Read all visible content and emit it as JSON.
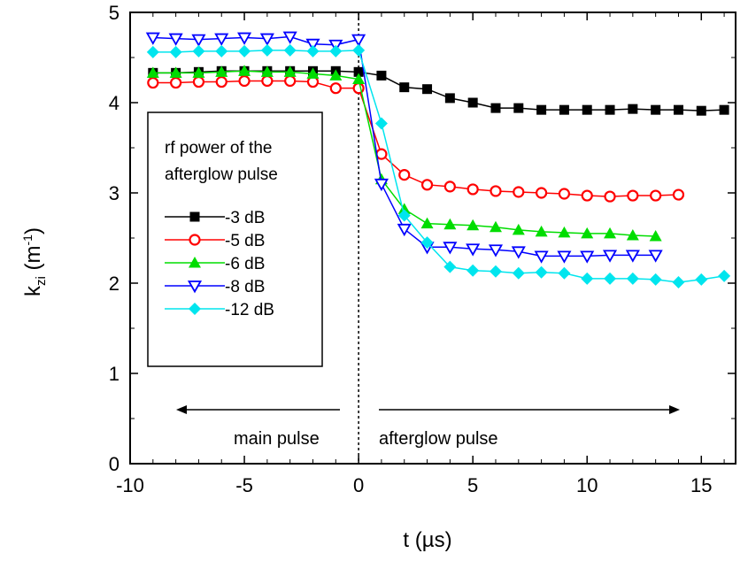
{
  "chart_data": {
    "type": "line",
    "xlabel": "t (µs)",
    "ylabel_main": "k",
    "ylabel_sub": "zi",
    "ylabel_unit_open": " (m",
    "ylabel_unit_sup": "-1",
    "ylabel_unit_close": ")",
    "xlim": [
      -10,
      16.5
    ],
    "ylim": [
      0,
      5
    ],
    "xticks": [
      -10,
      -5,
      0,
      5,
      10,
      15
    ],
    "yticks": [
      0,
      1,
      2,
      3,
      4,
      5
    ],
    "grid": false,
    "legend_title": [
      "rf power of the",
      "afterglow pulse"
    ],
    "legend_position": "left-center",
    "annotations": {
      "main_pulse": "main pulse",
      "afterglow_pulse": "afterglow pulse"
    },
    "series": [
      {
        "name": "-3 dB",
        "color": "#000000",
        "marker": "square-filled",
        "x": [
          -9,
          -8,
          -7,
          -6,
          -5,
          -4,
          -3,
          -2,
          -1,
          0,
          1,
          2,
          3,
          4,
          5,
          6,
          7,
          8,
          9,
          10,
          11,
          12,
          13,
          14,
          15,
          16
        ],
        "y": [
          4.33,
          4.33,
          4.34,
          4.35,
          4.35,
          4.35,
          4.35,
          4.35,
          4.35,
          4.34,
          4.3,
          4.17,
          4.15,
          4.05,
          4.0,
          3.94,
          3.94,
          3.92,
          3.92,
          3.92,
          3.92,
          3.93,
          3.92,
          3.92,
          3.91,
          3.92
        ]
      },
      {
        "name": "-5 dB",
        "color": "#ff0000",
        "marker": "circle-open",
        "x": [
          -9,
          -8,
          -7,
          -6,
          -5,
          -4,
          -3,
          -2,
          -1,
          0,
          1,
          2,
          3,
          4,
          5,
          6,
          7,
          8,
          9,
          10,
          11,
          12,
          13,
          14
        ],
        "y": [
          4.22,
          4.22,
          4.23,
          4.23,
          4.24,
          4.24,
          4.24,
          4.23,
          4.16,
          4.16,
          3.43,
          3.2,
          3.09,
          3.07,
          3.04,
          3.02,
          3.01,
          3.0,
          2.99,
          2.97,
          2.96,
          2.97,
          2.97,
          2.98
        ]
      },
      {
        "name": "-6 dB",
        "color": "#00dd00",
        "marker": "triangle-up-filled",
        "x": [
          -9,
          -8,
          -7,
          -6,
          -5,
          -4,
          -3,
          -2,
          -1,
          0,
          1,
          2,
          3,
          4,
          5,
          6,
          7,
          8,
          9,
          10,
          11,
          12,
          13
        ],
        "y": [
          4.33,
          4.33,
          4.33,
          4.34,
          4.35,
          4.34,
          4.34,
          4.32,
          4.3,
          4.26,
          3.15,
          2.82,
          2.66,
          2.65,
          2.64,
          2.62,
          2.59,
          2.57,
          2.56,
          2.55,
          2.55,
          2.53,
          2.52
        ]
      },
      {
        "name": "-8 dB",
        "color": "#0000ff",
        "marker": "triangle-down-open",
        "x": [
          -9,
          -8,
          -7,
          -6,
          -5,
          -4,
          -3,
          -2,
          -1,
          0,
          1,
          2,
          3,
          4,
          5,
          6,
          7,
          8,
          9,
          10,
          11,
          12,
          13
        ],
        "y": [
          4.72,
          4.71,
          4.7,
          4.71,
          4.72,
          4.71,
          4.73,
          4.65,
          4.64,
          4.7,
          3.1,
          2.6,
          2.4,
          2.4,
          2.38,
          2.37,
          2.35,
          2.3,
          2.3,
          2.3,
          2.31,
          2.31,
          2.31
        ]
      },
      {
        "name": "-12 dB",
        "color": "#00e5ee",
        "marker": "diamond-filled",
        "x": [
          -9,
          -8,
          -7,
          -6,
          -5,
          -4,
          -3,
          -2,
          -1,
          0,
          1,
          2,
          3,
          4,
          5,
          6,
          7,
          8,
          9,
          10,
          11,
          12,
          13,
          14,
          15,
          16
        ],
        "y": [
          4.56,
          4.56,
          4.57,
          4.57,
          4.57,
          4.58,
          4.58,
          4.57,
          4.57,
          4.58,
          3.77,
          2.75,
          2.45,
          2.18,
          2.14,
          2.13,
          2.11,
          2.12,
          2.11,
          2.05,
          2.05,
          2.05,
          2.04,
          2.01,
          2.04,
          2.08
        ]
      }
    ]
  }
}
